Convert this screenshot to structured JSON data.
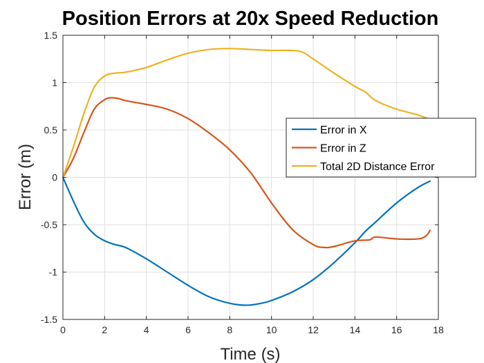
{
  "chart_data": {
    "type": "line",
    "title": "Position Errors at 20x Speed Reduction",
    "xlabel": "Time (s)",
    "ylabel": "Error (m)",
    "xlim": [
      0,
      18
    ],
    "ylim": [
      -1.5,
      1.5
    ],
    "xticks": [
      0,
      2,
      4,
      6,
      8,
      10,
      12,
      14,
      16,
      18
    ],
    "yticks": [
      -1.5,
      -1,
      -0.5,
      0,
      0.5,
      1,
      1.5
    ],
    "xtick_labels": [
      "0",
      "2",
      "4",
      "6",
      "8",
      "10",
      "12",
      "14",
      "16",
      "18"
    ],
    "ytick_labels": [
      "-1.5",
      "-1",
      "-0.5",
      "0",
      "0.5",
      "1",
      "1.5"
    ],
    "grid": true,
    "legend_position": "right",
    "series": [
      {
        "name": "Error in X",
        "color": "#0072BD",
        "x": [
          0,
          0.5,
          1,
          1.5,
          2,
          2.5,
          3,
          4,
          5,
          6,
          7,
          8,
          8.8,
          9.5,
          10,
          11,
          12,
          13,
          14,
          14.5,
          15,
          16,
          17,
          17.6
        ],
        "y": [
          0,
          -0.25,
          -0.47,
          -0.6,
          -0.67,
          -0.71,
          -0.74,
          -0.86,
          -1.0,
          -1.14,
          -1.26,
          -1.33,
          -1.35,
          -1.33,
          -1.3,
          -1.21,
          -1.08,
          -0.9,
          -0.69,
          -0.57,
          -0.47,
          -0.27,
          -0.11,
          -0.04
        ]
      },
      {
        "name": "Error in Z",
        "color": "#D95319",
        "x": [
          0,
          0.5,
          1,
          1.5,
          2,
          2.3,
          2.7,
          3,
          4,
          5,
          6,
          7,
          8,
          9,
          10,
          11,
          12,
          12.5,
          13,
          14,
          14.7,
          15,
          16,
          17,
          17.4,
          17.6
        ],
        "y": [
          0,
          0.2,
          0.47,
          0.72,
          0.82,
          0.84,
          0.83,
          0.81,
          0.77,
          0.72,
          0.62,
          0.47,
          0.29,
          0.05,
          -0.27,
          -0.55,
          -0.71,
          -0.74,
          -0.73,
          -0.67,
          -0.66,
          -0.63,
          -0.65,
          -0.65,
          -0.62,
          -0.56
        ]
      },
      {
        "name": "Total 2D Distance Error",
        "color": "#EDB120",
        "x": [
          0,
          0.5,
          1,
          1.5,
          2,
          2.5,
          3,
          4,
          5,
          6,
          7,
          8,
          9,
          10,
          11,
          11.5,
          12,
          13,
          14,
          14.5,
          15,
          16,
          17,
          17.6
        ],
        "y": [
          0,
          0.32,
          0.67,
          0.95,
          1.07,
          1.1,
          1.11,
          1.16,
          1.24,
          1.31,
          1.35,
          1.36,
          1.35,
          1.34,
          1.34,
          1.32,
          1.25,
          1.1,
          0.96,
          0.9,
          0.81,
          0.72,
          0.66,
          0.61
        ]
      }
    ]
  }
}
